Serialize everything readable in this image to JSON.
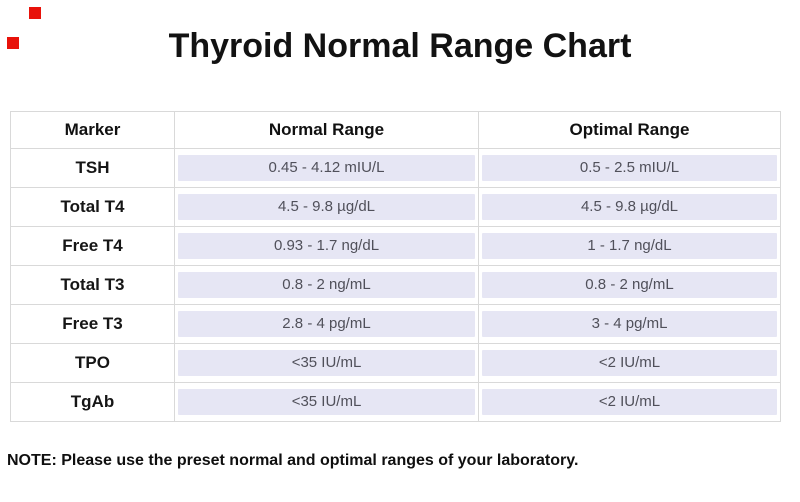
{
  "page": {
    "background_color": "#ffffff",
    "corner_marker_color": "#e8120a"
  },
  "chart_data": {
    "type": "table",
    "title": "Thyroid Normal Range Chart",
    "columns": [
      "Marker",
      "Normal Range",
      "Optimal Range"
    ],
    "rows": [
      [
        "TSH",
        "0.45 - 4.12 mIU/L",
        "0.5 - 2.5 mIU/L"
      ],
      [
        "Total T4",
        "4.5 - 9.8 µg/dL",
        "4.5 - 9.8 µg/dL"
      ],
      [
        "Free T4",
        "0.93 - 1.7 ng/dL",
        "1 - 1.7 ng/dL"
      ],
      [
        "Total T3",
        "0.8 - 2 ng/mL",
        "0.8 - 2 ng/mL"
      ],
      [
        "Free T3",
        "2.8 - 4 pg/mL",
        "3 - 4 pg/mL"
      ],
      [
        "TPO",
        "<35 IU/mL",
        "<2 IU/mL"
      ],
      [
        "TgAb",
        "<35 IU/mL",
        "<2 IU/mL"
      ]
    ],
    "row_highlight_color": "#e6e6f4",
    "border_color": "#d9d9d9",
    "layout": "3-column table, header row bold, value cells highlighted"
  },
  "note": "NOTE: Please use the preset normal and optimal ranges of your laboratory."
}
